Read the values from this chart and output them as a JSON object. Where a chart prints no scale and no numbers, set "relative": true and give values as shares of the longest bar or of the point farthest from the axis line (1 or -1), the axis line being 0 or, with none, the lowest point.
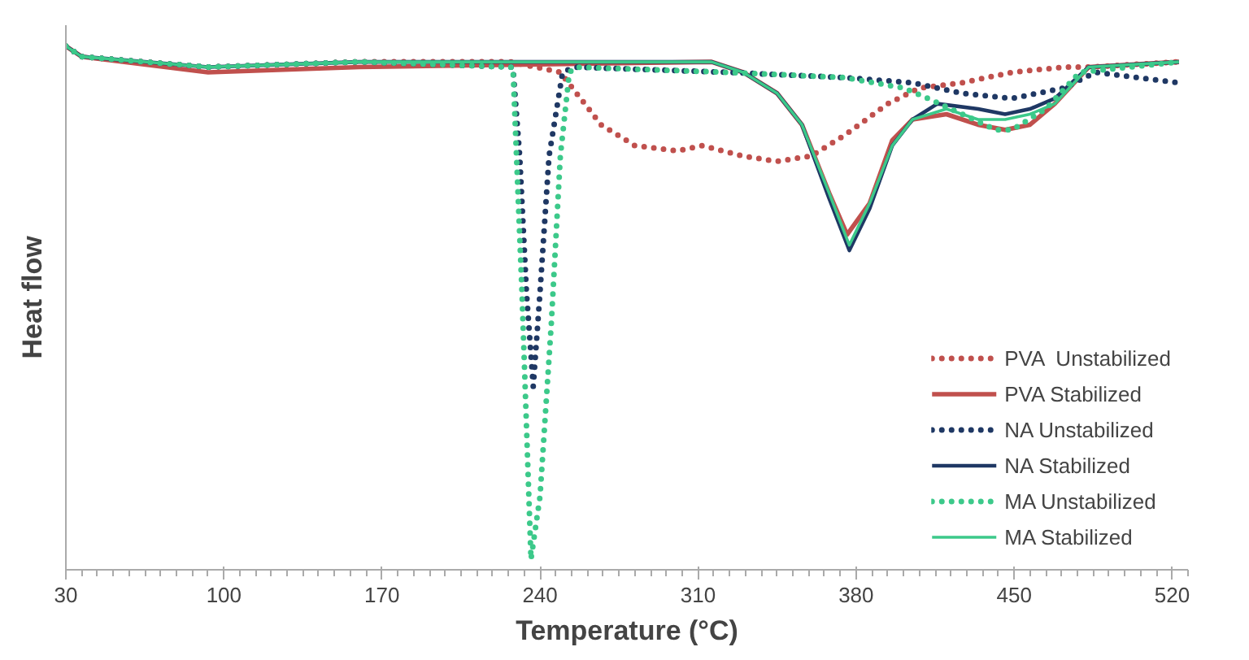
{
  "chart_data": {
    "type": "line",
    "xlabel": "Temperature (°C)",
    "ylabel": "Heat flow",
    "relative": true,
    "xlim": [
      30,
      527
    ],
    "xticks": [
      30,
      100,
      170,
      240,
      310,
      380,
      450,
      520
    ],
    "grid": false,
    "legend": "bottom right",
    "tick_labels": "x",
    "marker": "none",
    "series": [
      {
        "name": "PVA  Unstabilized",
        "color": "#c0504d",
        "line_style": "dotted",
        "x": [
          30,
          37,
          93,
          160,
          227,
          249,
          267,
          282,
          301,
          312,
          330,
          345,
          360,
          375,
          394,
          408,
          427,
          449,
          472,
          483,
          523
        ],
        "values": [
          1.0,
          0.98,
          0.96,
          0.97,
          0.97,
          0.95,
          0.85,
          0.81,
          0.8,
          0.81,
          0.79,
          0.78,
          0.79,
          0.83,
          0.89,
          0.92,
          0.93,
          0.95,
          0.96,
          0.96,
          0.97
        ]
      },
      {
        "name": "PVA Stabilized",
        "color": "#c0504d",
        "line_style": "solid",
        "x": [
          30,
          37,
          93,
          160,
          316,
          330,
          345,
          356,
          368,
          376,
          386,
          396,
          405,
          420,
          434,
          446,
          457,
          468,
          483,
          523
        ],
        "values": [
          1.0,
          0.98,
          0.95,
          0.96,
          0.97,
          0.95,
          0.91,
          0.85,
          0.72,
          0.64,
          0.7,
          0.82,
          0.86,
          0.87,
          0.85,
          0.84,
          0.85,
          0.89,
          0.96,
          0.97
        ]
      },
      {
        "name": "NA Unstabilized",
        "color": "#1f3864",
        "line_style": "dotted",
        "x": [
          30,
          37,
          93,
          160,
          228,
          231,
          234,
          237,
          240,
          244,
          250,
          255,
          323,
          375,
          405,
          427,
          449,
          472,
          486,
          523
        ],
        "values": [
          1.0,
          0.98,
          0.96,
          0.97,
          0.96,
          0.79,
          0.53,
          0.35,
          0.53,
          0.79,
          0.95,
          0.96,
          0.95,
          0.94,
          0.93,
          0.91,
          0.9,
          0.92,
          0.95,
          0.93
        ]
      },
      {
        "name": "NA Stabilized",
        "color": "#1f3864",
        "line_style": "solid",
        "x": [
          30,
          37,
          93,
          160,
          316,
          330,
          345,
          356,
          368,
          377,
          386,
          396,
          405,
          416,
          434,
          446,
          457,
          468,
          483,
          523
        ],
        "values": [
          1.0,
          0.98,
          0.96,
          0.97,
          0.97,
          0.95,
          0.91,
          0.85,
          0.71,
          0.61,
          0.69,
          0.81,
          0.86,
          0.89,
          0.88,
          0.87,
          0.88,
          0.9,
          0.96,
          0.97
        ]
      },
      {
        "name": "MA Unstabilized",
        "color": "#3cc98a",
        "line_style": "dotted",
        "x": [
          30,
          37,
          93,
          160,
          228,
          232,
          236,
          240,
          245,
          249,
          253,
          256,
          323,
          375,
          401,
          412,
          427,
          442,
          449,
          464,
          479,
          523
        ],
        "values": [
          1.0,
          0.98,
          0.96,
          0.97,
          0.96,
          0.53,
          0.02,
          0.14,
          0.47,
          0.79,
          0.95,
          0.96,
          0.95,
          0.94,
          0.92,
          0.9,
          0.87,
          0.84,
          0.84,
          0.88,
          0.95,
          0.97
        ]
      },
      {
        "name": "MA Stabilized",
        "color": "#3cc98a",
        "line_style": "solid",
        "x": [
          30,
          37,
          93,
          160,
          316,
          330,
          345,
          356,
          368,
          377,
          386,
          396,
          405,
          420,
          434,
          446,
          457,
          468,
          483,
          523
        ],
        "values": [
          1.0,
          0.98,
          0.96,
          0.97,
          0.97,
          0.95,
          0.91,
          0.85,
          0.72,
          0.62,
          0.7,
          0.81,
          0.86,
          0.88,
          0.86,
          0.86,
          0.87,
          0.89,
          0.96,
          0.97
        ]
      }
    ]
  }
}
